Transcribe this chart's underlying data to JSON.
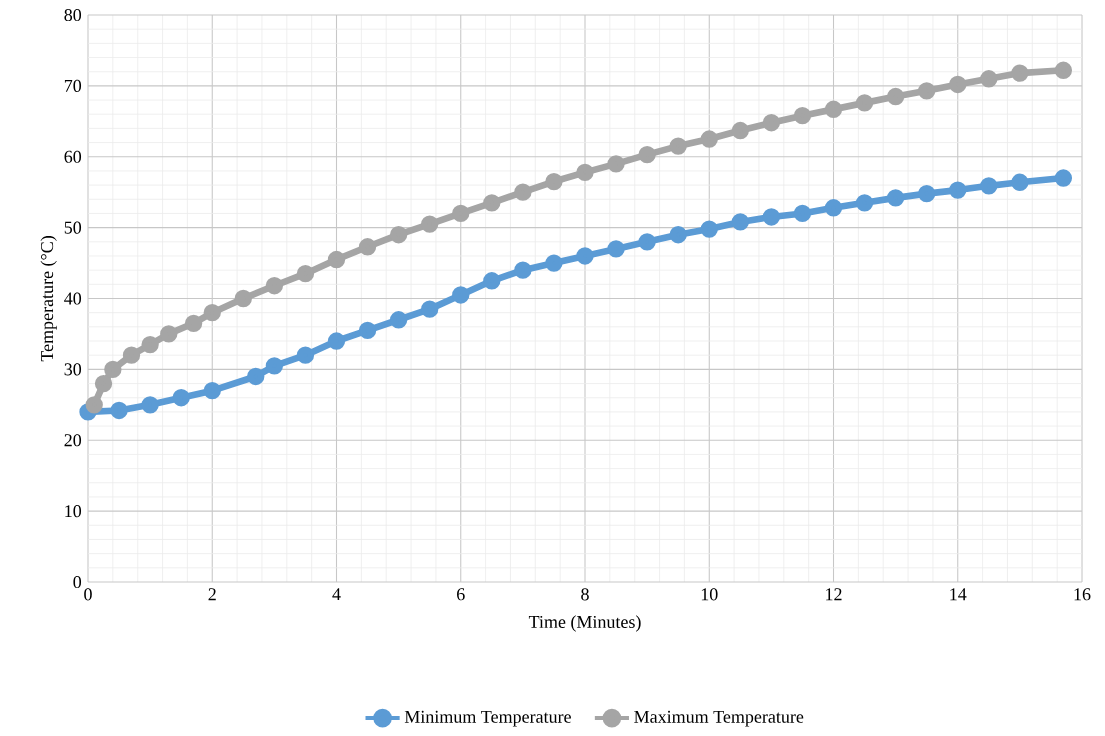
{
  "chart_data": {
    "type": "line",
    "xlabel": "Time (Minutes)",
    "ylabel": "Temperature (°C)",
    "xlim": [
      0,
      16
    ],
    "xticks": [
      0,
      2,
      4,
      6,
      8,
      10,
      12,
      14,
      16
    ],
    "ylim": [
      0,
      80
    ],
    "yticks": [
      0,
      10,
      20,
      30,
      40,
      50,
      60,
      70,
      80
    ],
    "grid": true,
    "legend": "bottom",
    "marker": "circle",
    "line_style": "solid",
    "series": [
      {
        "name": "Minimum Temperature",
        "color": "#5b9bd5",
        "x": [
          0,
          0.5,
          1,
          1.5,
          2,
          2.7,
          3,
          3.5,
          4,
          4.5,
          5,
          5.5,
          6,
          6.5,
          7,
          7.5,
          8,
          8.5,
          9,
          9.5,
          10,
          10.5,
          11,
          11.5,
          12,
          12.5,
          13,
          13.5,
          14,
          14.5,
          15,
          15.7
        ],
        "values": [
          24,
          24.2,
          25,
          26,
          27,
          29,
          30.5,
          32,
          34,
          35.5,
          37,
          38.5,
          40.5,
          42.5,
          44,
          45,
          46,
          47,
          48,
          49,
          49.8,
          50.8,
          51.5,
          52,
          52.8,
          53.5,
          54.2,
          54.8,
          55.3,
          55.9,
          56.4,
          57
        ]
      },
      {
        "name": "Maximum Temperature",
        "color": "#a5a5a5",
        "x": [
          0.1,
          0.25,
          0.4,
          0.7,
          1,
          1.3,
          1.7,
          2,
          2.5,
          3,
          3.5,
          4,
          4.5,
          5,
          5.5,
          6,
          6.5,
          7,
          7.5,
          8,
          8.5,
          9,
          9.5,
          10,
          10.5,
          11,
          11.5,
          12,
          12.5,
          13,
          13.5,
          14,
          14.5,
          15,
          15.7
        ],
        "values": [
          25,
          28,
          30,
          32,
          33.5,
          35,
          36.5,
          38,
          40,
          41.8,
          43.5,
          45.5,
          47.3,
          49,
          50.5,
          52,
          53.5,
          55,
          56.5,
          57.8,
          59,
          60.3,
          61.5,
          62.5,
          63.7,
          64.8,
          65.8,
          66.7,
          67.6,
          68.5,
          69.3,
          70.2,
          71,
          71.8,
          72.2
        ]
      }
    ]
  }
}
